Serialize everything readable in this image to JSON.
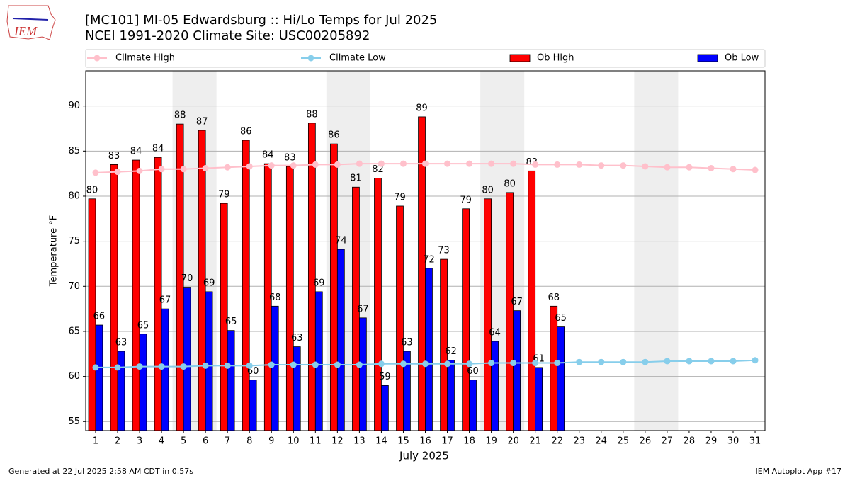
{
  "chart_data": {
    "type": "bar",
    "title": "[MC101] MI-05 Edwardsburg  :: Hi/Lo Temps for Jul 2025",
    "subtitle": "NCEI 1991-2020 Climate Site: USC00205892",
    "logo_text": "IEM",
    "x_label": "July 2025",
    "y_label": "Temperature °F",
    "footer_left": "Generated at 22 Jul 2025 2:58 AM CDT in 0.57s",
    "footer_right": "IEM Autoplot App #17",
    "x": [
      1,
      2,
      3,
      4,
      5,
      6,
      7,
      8,
      9,
      10,
      11,
      12,
      13,
      14,
      15,
      16,
      17,
      18,
      19,
      20,
      21,
      22,
      23,
      24,
      25,
      26,
      27,
      28,
      29,
      30,
      31
    ],
    "xlim": [
      0.55,
      31.45
    ],
    "xticks": [
      1,
      2,
      3,
      4,
      5,
      6,
      7,
      8,
      9,
      10,
      11,
      12,
      13,
      14,
      15,
      16,
      17,
      18,
      19,
      20,
      21,
      22,
      23,
      24,
      25,
      26,
      27,
      28,
      29,
      30,
      31
    ],
    "ylim": [
      54,
      93.9
    ],
    "yticks": [
      55,
      60,
      65,
      70,
      75,
      80,
      85,
      90
    ],
    "grid": true,
    "weekend_spans": [
      [
        5,
        6
      ],
      [
        12,
        13
      ],
      [
        19,
        20
      ],
      [
        26,
        27
      ]
    ],
    "series": [
      {
        "name": "Climate High",
        "kind": "line",
        "color": "#ffc0cb",
        "values": [
          82.6,
          82.7,
          82.8,
          83.0,
          83.0,
          83.1,
          83.2,
          83.3,
          83.4,
          83.4,
          83.5,
          83.5,
          83.6,
          83.6,
          83.6,
          83.6,
          83.6,
          83.6,
          83.6,
          83.6,
          83.5,
          83.5,
          83.5,
          83.4,
          83.4,
          83.3,
          83.2,
          83.2,
          83.1,
          83.0,
          82.9
        ]
      },
      {
        "name": "Climate Low",
        "kind": "line",
        "color": "#87ceeb",
        "values": [
          61.0,
          61.0,
          61.1,
          61.1,
          61.1,
          61.2,
          61.2,
          61.2,
          61.3,
          61.3,
          61.3,
          61.3,
          61.3,
          61.4,
          61.4,
          61.4,
          61.4,
          61.4,
          61.5,
          61.5,
          61.5,
          61.5,
          61.6,
          61.6,
          61.6,
          61.6,
          61.7,
          61.7,
          61.7,
          61.7,
          61.8
        ]
      },
      {
        "name": "Ob High",
        "kind": "bar",
        "color": "#ff0000",
        "values": [
          79.7,
          83.5,
          84.0,
          84.3,
          88.0,
          87.3,
          79.2,
          86.2,
          83.6,
          83.3,
          88.1,
          85.8,
          81.0,
          82.0,
          78.9,
          88.8,
          73.0,
          78.6,
          79.7,
          80.4,
          82.8,
          67.8,
          null,
          null,
          null,
          null,
          null,
          null,
          null,
          null,
          null
        ],
        "value_labels": [
          "80",
          "83",
          "84",
          "84",
          "88",
          "87",
          "79",
          "86",
          "84",
          "83",
          "88",
          "86",
          "81",
          "82",
          "79",
          "89",
          "73",
          "79",
          "80",
          "80",
          "83",
          "68",
          null,
          null,
          null,
          null,
          null,
          null,
          null,
          null,
          null
        ]
      },
      {
        "name": "Ob Low",
        "kind": "bar",
        "color": "#0000ff",
        "values": [
          65.7,
          62.8,
          64.7,
          67.5,
          69.9,
          69.4,
          65.1,
          59.6,
          67.8,
          63.3,
          69.4,
          74.1,
          66.5,
          59.0,
          62.8,
          72.0,
          61.8,
          59.6,
          63.9,
          67.3,
          61.0,
          65.5,
          null,
          null,
          null,
          null,
          null,
          null,
          null,
          null,
          null
        ],
        "value_labels": [
          "66",
          "63",
          "65",
          "67",
          "70",
          "69",
          "65",
          "60",
          "68",
          "63",
          "69",
          "74",
          "67",
          "59",
          "63",
          "72",
          "62",
          "60",
          "64",
          "67",
          "61",
          "65",
          null,
          null,
          null,
          null,
          null,
          null,
          null,
          null,
          null
        ]
      }
    ]
  }
}
